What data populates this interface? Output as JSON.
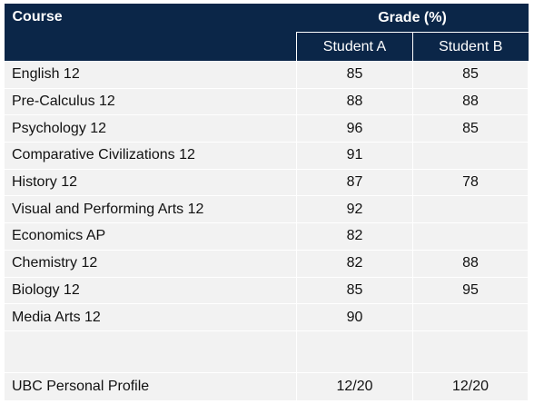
{
  "headers": {
    "course": "Course",
    "grade": "Grade (%)",
    "student_a": "Student A",
    "student_b": "Student B"
  },
  "rows": [
    {
      "course": "English 12",
      "a": "85",
      "b": "85"
    },
    {
      "course": "Pre-Calculus 12",
      "a": "88",
      "b": "88"
    },
    {
      "course": "Psychology 12",
      "a": "96",
      "b": "85"
    },
    {
      "course": "Comparative Civilizations 12",
      "a": "91",
      "b": ""
    },
    {
      "course": "History 12",
      "a": "87",
      "b": "78"
    },
    {
      "course": "Visual and Performing Arts 12",
      "a": "92",
      "b": ""
    },
    {
      "course": "Economics AP",
      "a": "82",
      "b": ""
    },
    {
      "course": "Chemistry 12",
      "a": "82",
      "b": "88"
    },
    {
      "course": "Biology 12",
      "a": "85",
      "b": "95"
    },
    {
      "course": "Media Arts 12",
      "a": "90",
      "b": ""
    },
    {
      "course": "",
      "a": "",
      "b": ""
    },
    {
      "course": "UBC Personal Profile",
      "a": "12/20",
      "b": "12/20"
    }
  ],
  "colors": {
    "header_bg": "#0b2648",
    "cell_bg": "#f2f2f2"
  }
}
